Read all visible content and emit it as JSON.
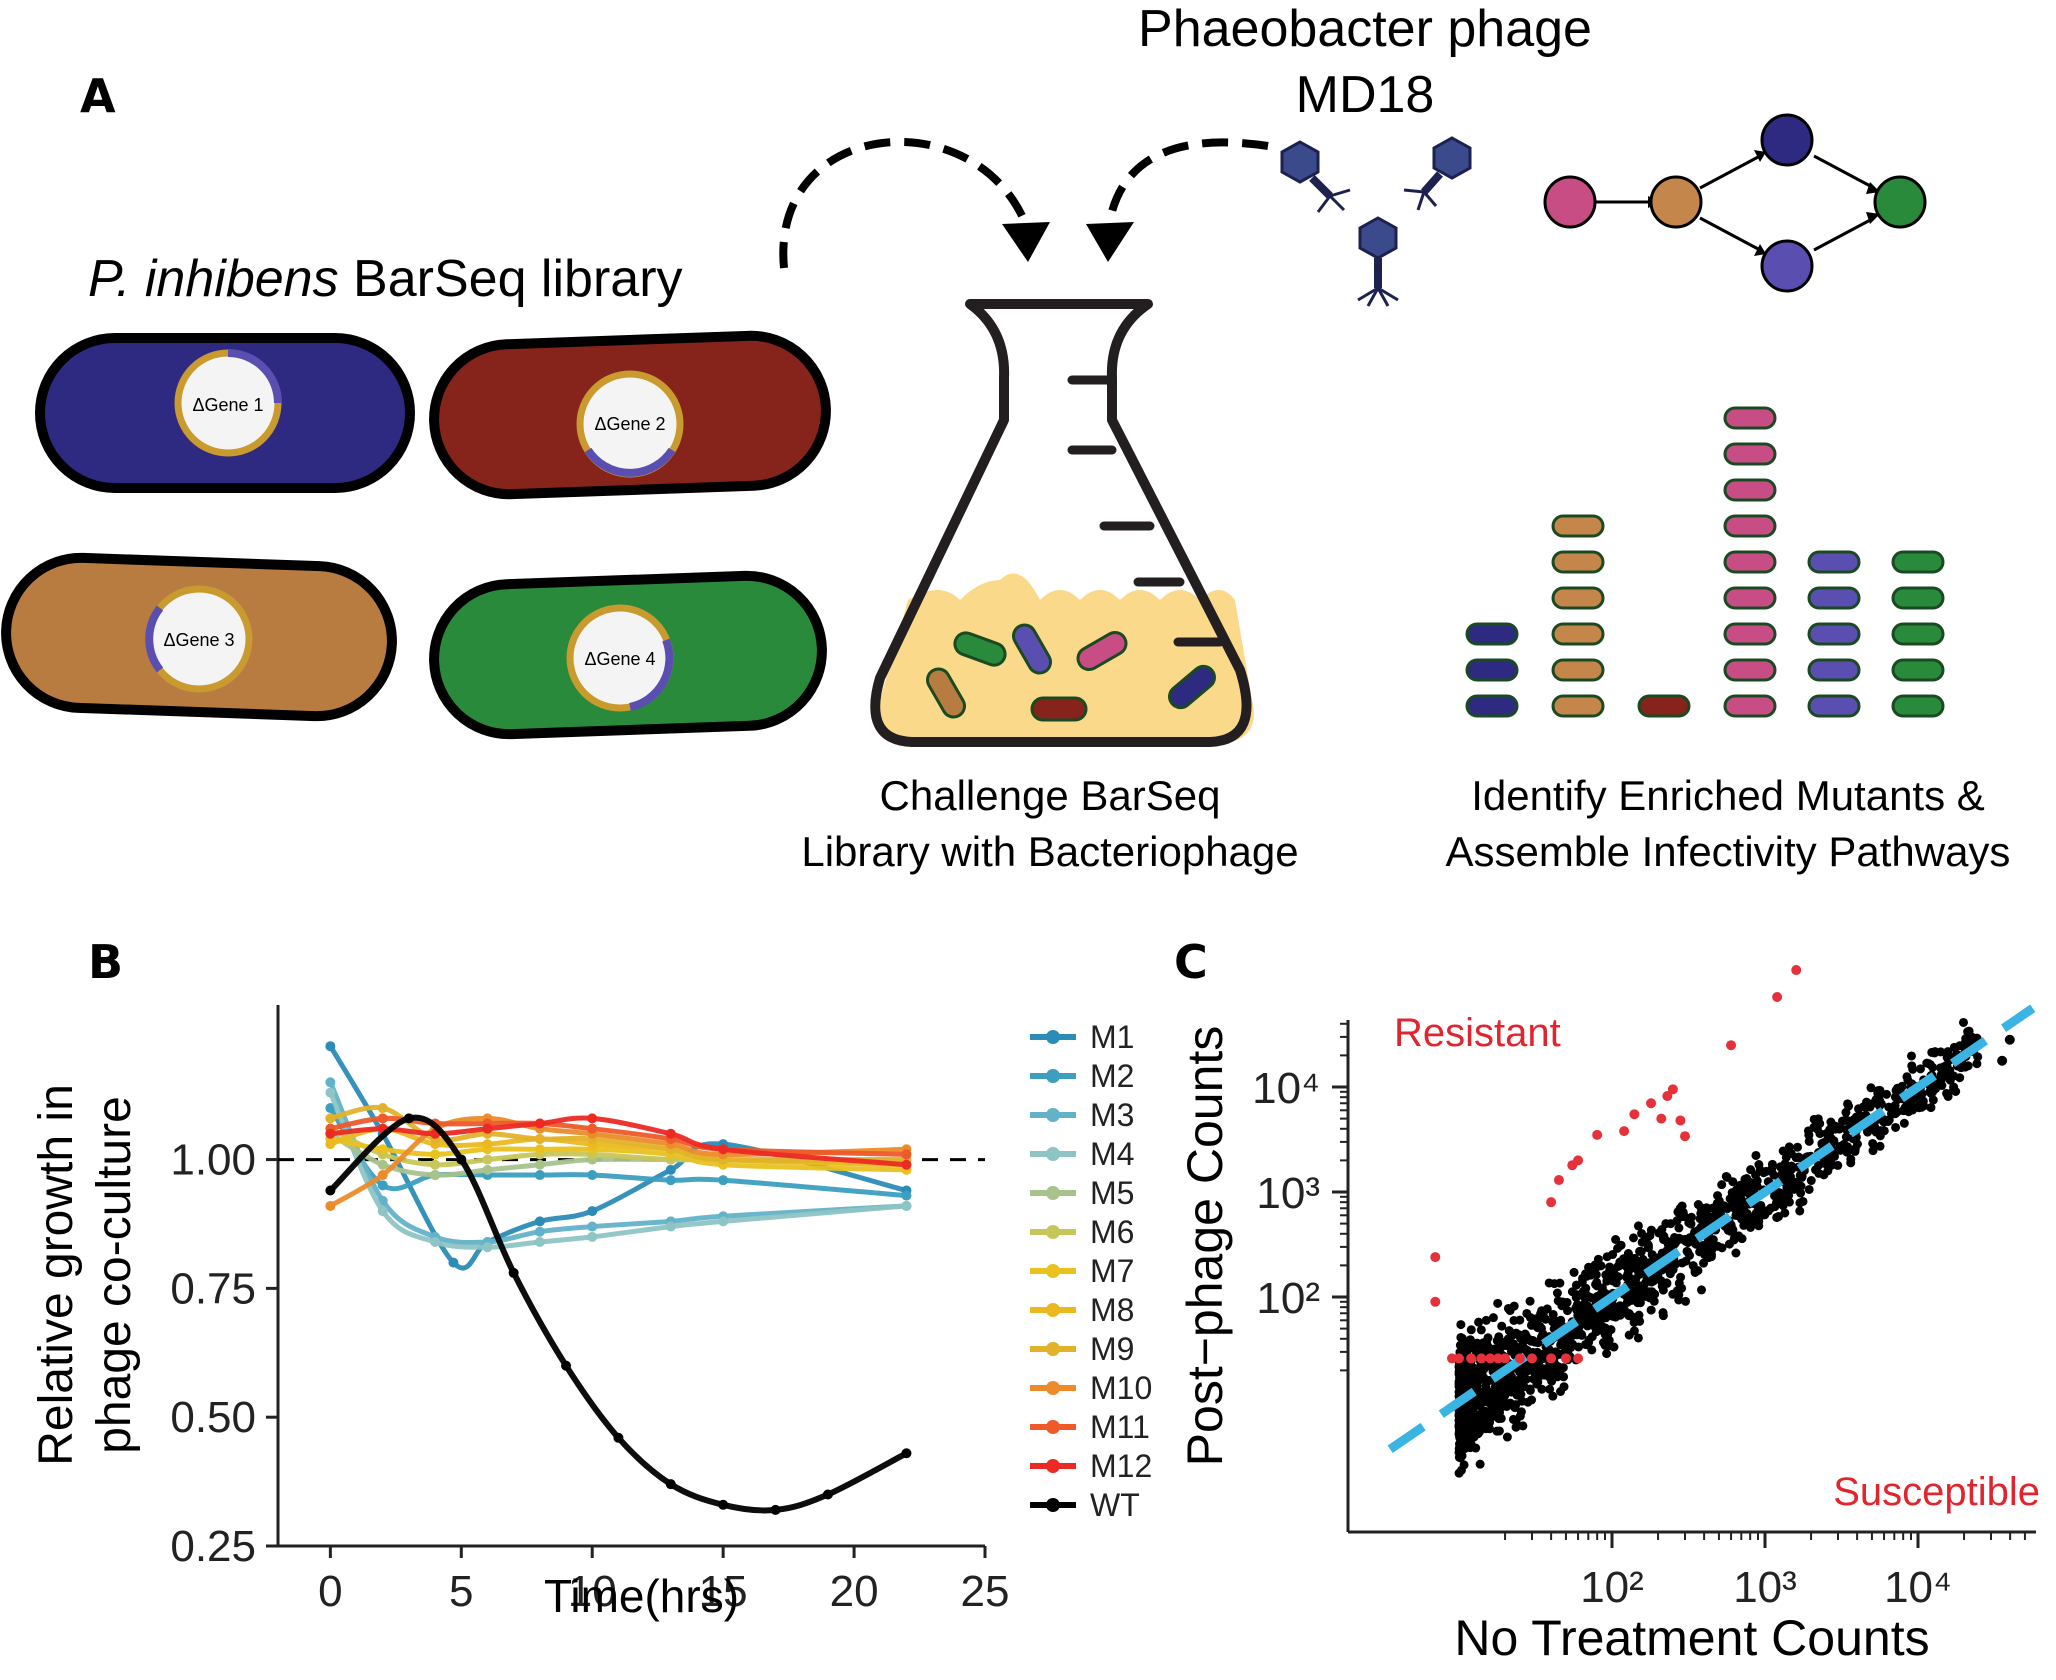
{
  "panel_a": {
    "letter": "A",
    "phage_title_line1": "Phaeobacter phage",
    "phage_title_line2": "MD18",
    "library_label_italic": "P. inhibens",
    "library_label_rest": " BarSeq library",
    "cells": [
      {
        "label": "ΔGene 1",
        "color": "#2e2a82"
      },
      {
        "label": "ΔGene 2",
        "color": "#86231b"
      },
      {
        "label": "ΔGene 3",
        "color": "#b87c41"
      },
      {
        "label": "ΔGene 4",
        "color": "#2a8a3b"
      }
    ],
    "challenge_line1": "Challenge BarSeq",
    "challenge_line2": "Library with Bacteriophage",
    "identify_line1": "Identify Enriched Mutants &",
    "identify_line2": "Assemble Infectivity Pathways",
    "node_colors": [
      "#c84d85",
      "#c4864a",
      "#2e2a82",
      "#5a4fb0",
      "#2a8a3b"
    ],
    "stack_counts": [
      3,
      6,
      1,
      9,
      5,
      5
    ],
    "stack_colors": [
      "#2e2a82",
      "#c4864a",
      "#86231b",
      "#c84d85",
      "#5a4fb0",
      "#2a8a3b"
    ]
  },
  "panel_b": {
    "letter": "B"
  },
  "panel_c": {
    "letter": "C"
  },
  "chart_data": [
    {
      "type": "line",
      "xlabel": "Time(hrs)",
      "ylabel_line1": "Relative growth in",
      "ylabel_line2": "phage co-culture",
      "xlim": [
        -2,
        25
      ],
      "ylim": [
        0.25,
        1.3
      ],
      "x_ticks": [
        "0",
        "5",
        "10",
        "15",
        "20",
        "25"
      ],
      "y_ticks": [
        "0.25",
        "0.50",
        "0.75",
        "1.00"
      ],
      "reference_line": 1.0,
      "series": [
        {
          "name": "M1",
          "color": "#2b8cb6",
          "x": [
            0,
            2,
            4.7,
            6,
            8,
            10,
            13,
            15,
            22
          ],
          "values": [
            1.22,
            1.05,
            0.8,
            0.84,
            0.88,
            0.9,
            0.98,
            1.03,
            0.94
          ]
        },
        {
          "name": "M2",
          "color": "#3c9fc0",
          "x": [
            0,
            2,
            4,
            6,
            8,
            10,
            13,
            15,
            22
          ],
          "values": [
            1.1,
            0.95,
            0.97,
            0.97,
            0.97,
            0.97,
            0.96,
            0.96,
            0.93
          ]
        },
        {
          "name": "M3",
          "color": "#63b2c9",
          "x": [
            0,
            2,
            4,
            6,
            8,
            10,
            13,
            15,
            22
          ],
          "values": [
            1.15,
            0.92,
            0.85,
            0.84,
            0.86,
            0.87,
            0.88,
            0.89,
            0.91
          ]
        },
        {
          "name": "M4",
          "color": "#8ec4c4",
          "x": [
            0,
            2,
            4,
            6,
            8,
            10,
            13,
            15,
            22
          ],
          "values": [
            1.13,
            0.9,
            0.84,
            0.83,
            0.84,
            0.85,
            0.87,
            0.88,
            0.91
          ]
        },
        {
          "name": "M5",
          "color": "#a8c28c",
          "x": [
            0,
            2,
            4,
            6,
            8,
            10,
            13,
            15,
            22
          ],
          "values": [
            1.05,
            0.99,
            0.97,
            0.98,
            0.99,
            1.0,
            1.0,
            1.0,
            1.0
          ]
        },
        {
          "name": "M6",
          "color": "#c7c65a",
          "x": [
            0,
            2,
            4,
            6,
            8,
            10,
            13,
            15,
            22
          ],
          "values": [
            1.06,
            1.01,
            0.99,
            1.0,
            1.01,
            1.01,
            1.0,
            1.0,
            0.99
          ]
        },
        {
          "name": "M7",
          "color": "#e9c21f",
          "x": [
            0,
            2,
            4,
            6,
            8,
            10,
            13,
            15,
            22
          ],
          "values": [
            1.04,
            1.02,
            1.01,
            1.02,
            1.02,
            1.02,
            1.01,
            0.99,
            0.98
          ]
        },
        {
          "name": "M8",
          "color": "#ecb820",
          "x": [
            0,
            2,
            4,
            6,
            8,
            10,
            13,
            15,
            22
          ],
          "values": [
            1.03,
            1.06,
            1.03,
            1.03,
            1.04,
            1.03,
            1.02,
            1.0,
            0.99
          ]
        },
        {
          "name": "M9",
          "color": "#e2b22b",
          "x": [
            0,
            2,
            4,
            6,
            8,
            10,
            13,
            15,
            22
          ],
          "values": [
            1.08,
            1.1,
            1.04,
            1.05,
            1.04,
            1.04,
            1.02,
            1.0,
            1.0
          ]
        },
        {
          "name": "M10",
          "color": "#ec8b2a",
          "x": [
            0,
            2,
            4,
            6,
            8,
            10,
            13,
            15,
            22
          ],
          "values": [
            0.91,
            0.97,
            1.06,
            1.08,
            1.06,
            1.05,
            1.03,
            1.01,
            1.02
          ]
        },
        {
          "name": "M11",
          "color": "#ee5a2a",
          "x": [
            0,
            2,
            4,
            6,
            8,
            10,
            13,
            15,
            22
          ],
          "values": [
            1.06,
            1.08,
            1.07,
            1.07,
            1.07,
            1.06,
            1.04,
            1.02,
            1.01
          ]
        },
        {
          "name": "M12",
          "color": "#ec2a24",
          "x": [
            0,
            2,
            4,
            6,
            8,
            10,
            13,
            15,
            22
          ],
          "values": [
            1.05,
            1.06,
            1.05,
            1.06,
            1.07,
            1.08,
            1.05,
            1.02,
            0.99
          ]
        },
        {
          "name": "WT",
          "color": "#000000",
          "x": [
            0,
            3,
            5,
            7,
            9,
            11,
            13,
            15,
            17,
            19,
            22
          ],
          "values": [
            0.94,
            1.08,
            1.0,
            0.78,
            0.6,
            0.46,
            0.37,
            0.33,
            0.32,
            0.35,
            0.43
          ]
        }
      ]
    },
    {
      "type": "scatter",
      "xlabel": "No Treatment Counts",
      "ylabel": "Post−phage Counts",
      "x_scale": "log",
      "y_scale": "log",
      "x_ticks": [
        "10²",
        "10³",
        "10⁴"
      ],
      "y_ticks": [
        "10²",
        "10³",
        "10⁴"
      ],
      "annotation_resistant": "Resistant",
      "annotation_susceptible": "Susceptible",
      "reference_line": "y = x",
      "resistant_points": [
        [
          1600,
          130000
        ],
        [
          1200,
          72000
        ],
        [
          600,
          25000
        ],
        [
          250,
          9500
        ],
        [
          230,
          8200
        ],
        [
          180,
          7000
        ],
        [
          140,
          5500
        ],
        [
          210,
          5000
        ],
        [
          280,
          4800
        ],
        [
          120,
          3800
        ],
        [
          80,
          3500
        ],
        [
          300,
          3400
        ],
        [
          60,
          2000
        ],
        [
          55,
          1800
        ],
        [
          45,
          1300
        ],
        [
          40,
          800
        ],
        [
          7,
          240
        ],
        [
          7,
          90
        ],
        [
          40,
          26
        ],
        [
          50,
          26
        ],
        [
          60,
          26
        ],
        [
          20,
          26
        ],
        [
          25,
          26
        ],
        [
          30,
          26
        ]
      ],
      "susceptible_points": [
        [
          9,
          26
        ],
        [
          10,
          26
        ],
        [
          12,
          26
        ],
        [
          14,
          26
        ],
        [
          16,
          26
        ],
        [
          18,
          26
        ]
      ]
    }
  ]
}
